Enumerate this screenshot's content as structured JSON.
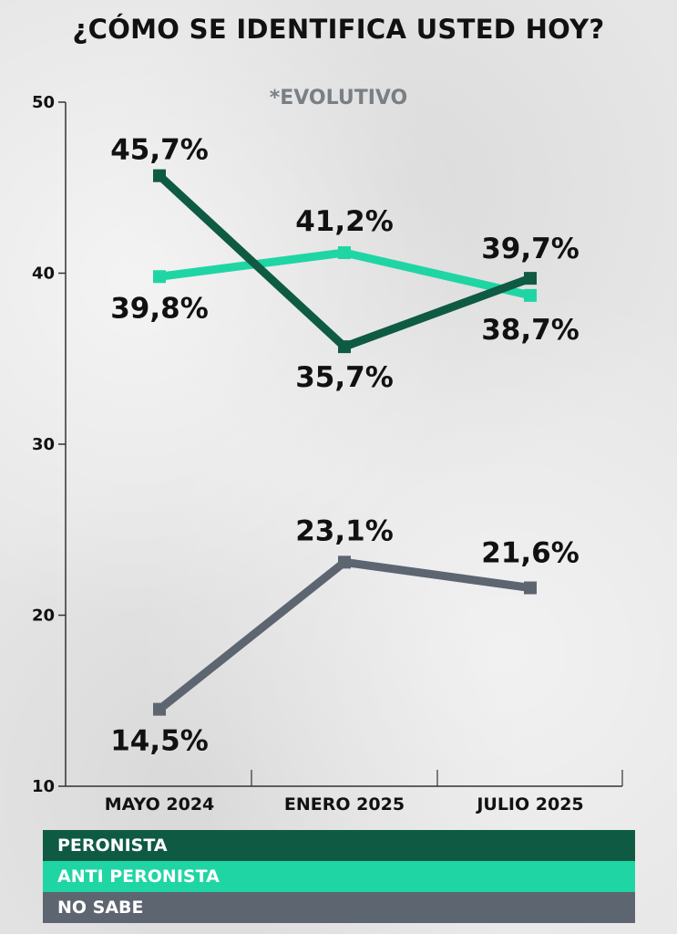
{
  "header": {
    "title": "¿CÓMO SE IDENTIFICA USTED HOY?",
    "subtitle": "*EVOLUTIVO"
  },
  "chart_data": {
    "type": "line",
    "title": "¿CÓMO SE IDENTIFICA USTED HOY?",
    "subtitle": "*EVOLUTIVO",
    "categories": [
      "MAYO 2024",
      "ENERO 2025",
      "JULIO 2025"
    ],
    "ylim": [
      10,
      50
    ],
    "yticks": [
      10,
      20,
      30,
      40,
      50
    ],
    "grid": false,
    "legend_position": "bottom",
    "series": [
      {
        "name": "PERONISTA",
        "color": "#0f5a43",
        "values": [
          45.7,
          35.7,
          39.7
        ],
        "labels": [
          "45,7%",
          "35,7%",
          "39,7%"
        ]
      },
      {
        "name": "ANTI PERONISTA",
        "color": "#20d5a4",
        "values": [
          39.8,
          41.2,
          38.7
        ],
        "labels": [
          "39,8%",
          "41,2%",
          "38,7%"
        ]
      },
      {
        "name": "NO SABE",
        "color": "#5d6570",
        "values": [
          14.5,
          23.1,
          21.6
        ],
        "labels": [
          "14,5%",
          "23,1%",
          "21,6%"
        ]
      }
    ]
  }
}
